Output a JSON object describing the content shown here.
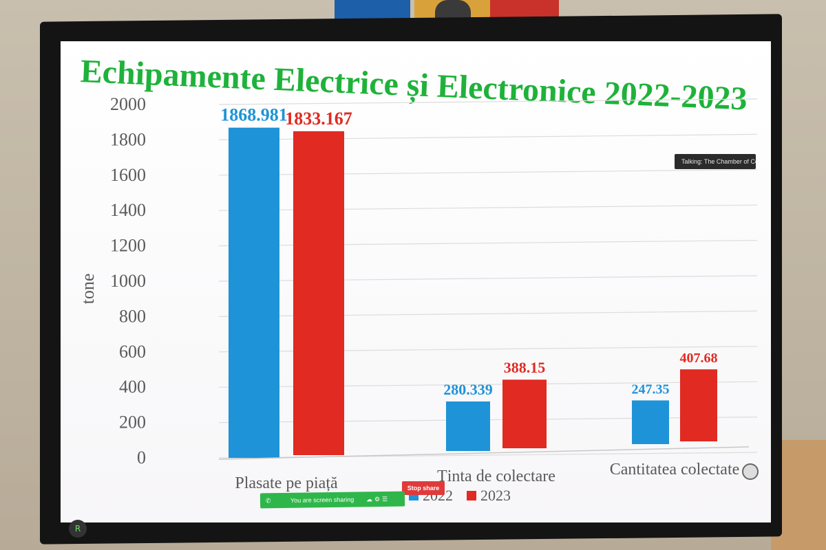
{
  "chart_data": {
    "type": "bar",
    "title": "Echipamente Electrice și Electronice 2022-2023",
    "ylabel": "tone",
    "ylim": [
      0,
      2000
    ],
    "yticks": [
      "0",
      "200",
      "400",
      "600",
      "800",
      "1000",
      "1200",
      "1400",
      "1600",
      "1800",
      "2000"
    ],
    "categories": [
      "Plasate pe piață",
      "Ținta de colectare",
      "Cantitatea colectate"
    ],
    "series": [
      {
        "name": "2022",
        "color": "#1e93d8",
        "values": [
          1868.981,
          280.339,
          247.35
        ],
        "labels": [
          "1868.981",
          "280.339",
          "247.35"
        ]
      },
      {
        "name": "2023",
        "color": "#e02a22",
        "values": [
          1833.167,
          388.15,
          407.68
        ],
        "labels": [
          "1833.167",
          "388.15",
          "407.68"
        ]
      }
    ],
    "grid": true,
    "legend": "bottom"
  },
  "overlay": {
    "talking_text": "Talking: The Chamber of Com...",
    "share_text": "You are screen sharing",
    "stop_share": "Stop share",
    "stylus_glyph": "R"
  },
  "colors": {
    "title": "#1fb23a",
    "series_2022": "#1e93d8",
    "series_2023": "#e02a22",
    "share_bar": "#2fb64a",
    "stop_button": "#e03a3a"
  }
}
